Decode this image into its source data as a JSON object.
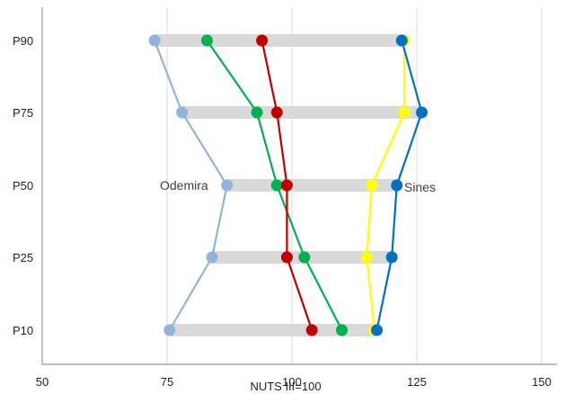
{
  "chart_data": {
    "type": "dumbbell",
    "xlabel": "NUTS III=100",
    "xlim": [
      50,
      150
    ],
    "xticks": [
      50,
      75,
      100,
      125,
      150
    ],
    "grid": true,
    "categories": [
      "P90",
      "P75",
      "P50",
      "P25",
      "P10"
    ],
    "ranges": [
      {
        "category": "P90",
        "min": 72.5,
        "max": 122.5
      },
      {
        "category": "P75",
        "min": 78,
        "max": 126
      },
      {
        "category": "P50",
        "min": 87,
        "max": 121
      },
      {
        "category": "P25",
        "min": 84,
        "max": 120
      },
      {
        "category": "P10",
        "min": 75.5,
        "max": 117
      }
    ],
    "series": [
      {
        "color": "#95b3d7",
        "values": [
          72.5,
          78,
          87,
          84,
          75.5
        ]
      },
      {
        "color": "#00b050",
        "values": [
          83,
          93,
          97,
          102.5,
          110
        ]
      },
      {
        "color": "#c00000",
        "values": [
          94,
          97,
          99,
          99,
          104
        ]
      },
      {
        "color": "#ffff00",
        "values": [
          122.5,
          122.5,
          116,
          115,
          116.5
        ]
      },
      {
        "color": "#0070c0",
        "values": [
          122,
          126,
          121,
          120,
          117
        ]
      }
    ],
    "annotations": [
      {
        "text": "Odemira",
        "category": "P50"
      },
      {
        "text": "Sines",
        "category": "P50"
      }
    ]
  }
}
